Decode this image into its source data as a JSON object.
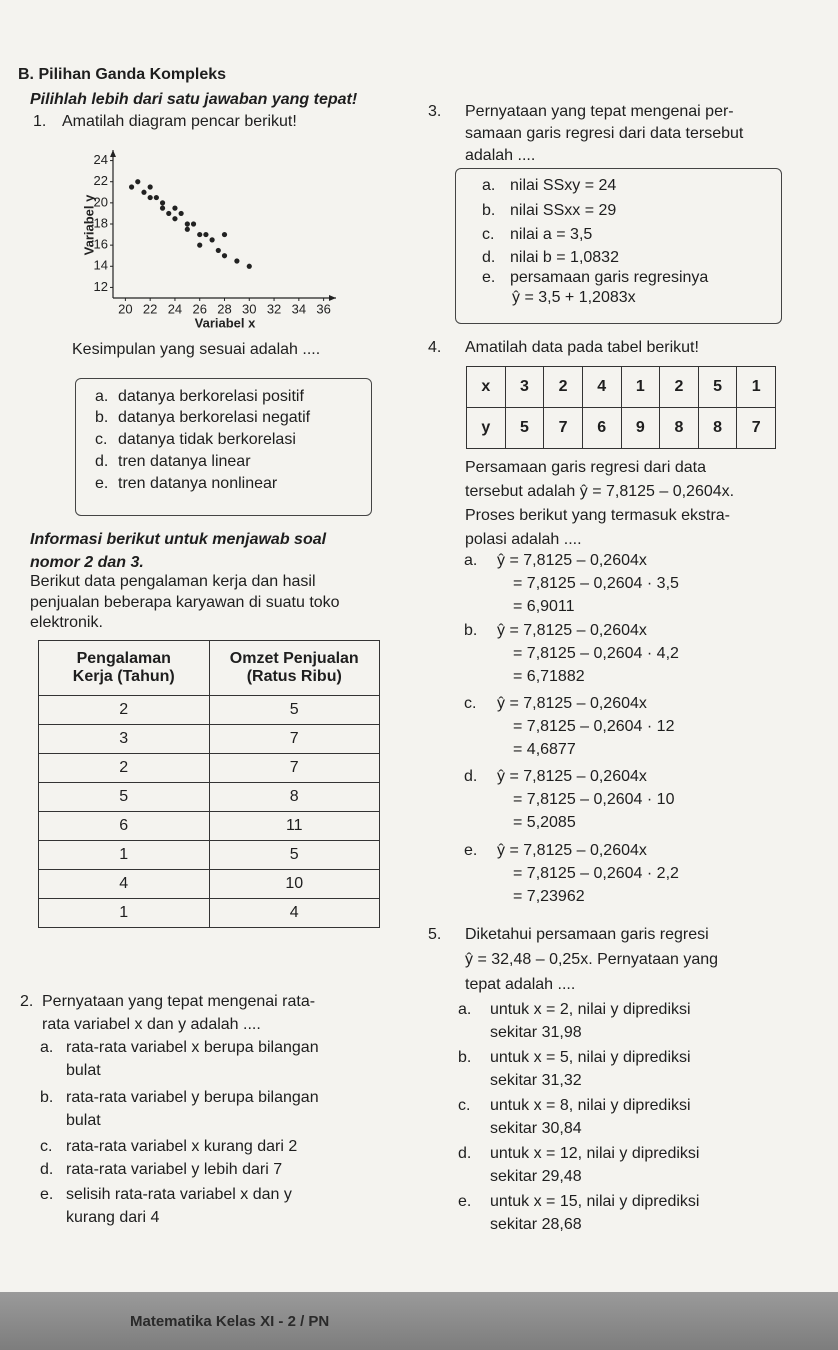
{
  "section": "B. Pilihan Ganda Kompleks",
  "instruction": "Pilihlah lebih dari satu jawaban yang tepat!",
  "q1": {
    "number": "1.",
    "prompt": "Amatilah diagram pencar berikut!",
    "chart": {
      "type": "scatter",
      "xlabel": "Variabel x",
      "ylabel": "Variabel y",
      "x": [
        20.5,
        21,
        21.5,
        22,
        22,
        22.5,
        23,
        23,
        23.5,
        24,
        24,
        24.5,
        25,
        25,
        25.5,
        26,
        26,
        26.5,
        27,
        27.5,
        28,
        28,
        29,
        30
      ],
      "y": [
        21.5,
        22,
        21,
        21.5,
        20.5,
        20.5,
        20,
        19.5,
        19,
        19.5,
        18.5,
        19,
        18,
        17.5,
        18,
        17,
        16,
        17,
        16.5,
        15.5,
        17,
        15,
        14.5,
        14
      ],
      "color": "#222222",
      "xlim": [
        19,
        37
      ],
      "ylim": [
        11,
        25
      ],
      "xticks": [
        20,
        22,
        24,
        26,
        28,
        30,
        32,
        34,
        36
      ],
      "yticks": [
        12,
        14,
        16,
        18,
        20,
        22,
        24
      ]
    },
    "question": "Kesimpulan yang sesuai adalah ....",
    "options": [
      {
        "letter": "a.",
        "lines": [
          "datanya berkorelasi positif"
        ]
      },
      {
        "letter": "b.",
        "lines": [
          "datanya berkorelasi negatif"
        ]
      },
      {
        "letter": "c.",
        "lines": [
          "datanya tidak berkorelasi"
        ]
      },
      {
        "letter": "d.",
        "lines": [
          "tren datanya linear"
        ]
      },
      {
        "letter": "e.",
        "lines": [
          "tren datanya nonlinear"
        ]
      }
    ]
  },
  "info": {
    "title": [
      "Informasi berikut untuk menjawab soal",
      "nomor 2 dan 3."
    ],
    "text": [
      "Berikut data pengalaman kerja dan hasil",
      "penjualan beberapa karyawan di suatu toko",
      "elektronik."
    ],
    "table": {
      "header": [
        "Pengalaman Kerja (Tahun)",
        "Omzet Penjualan (Ratus Ribu)"
      ],
      "rows": [
        [
          2,
          5
        ],
        [
          3,
          7
        ],
        [
          2,
          7
        ],
        [
          5,
          8
        ],
        [
          6,
          11
        ],
        [
          1,
          5
        ],
        [
          4,
          10
        ],
        [
          1,
          4
        ]
      ]
    }
  },
  "q2": {
    "number": "2.",
    "prompt": [
      "Pernyataan yang tepat mengenai rata-",
      "rata variabel x dan y adalah ...."
    ],
    "options": [
      {
        "letter": "a.",
        "lines": [
          "rata-rata variabel x berupa bilangan",
          "bulat"
        ]
      },
      {
        "letter": "b.",
        "lines": [
          "rata-rata variabel y berupa bilangan",
          "bulat"
        ]
      },
      {
        "letter": "c.",
        "lines": [
          "rata-rata variabel x kurang dari 2"
        ]
      },
      {
        "letter": "d.",
        "lines": [
          "rata-rata variabel y lebih dari 7"
        ]
      },
      {
        "letter": "e.",
        "lines": [
          "selisih rata-rata variabel x dan y",
          "kurang dari 4"
        ]
      }
    ]
  },
  "q3": {
    "number": "3.",
    "prompt": [
      "Pernyataan yang tepat mengenai per-",
      "samaan garis regresi dari data tersebut",
      "adalah ...."
    ],
    "options": [
      {
        "letter": "a.",
        "lines": [
          "nilai SSxy = 24"
        ]
      },
      {
        "letter": "b.",
        "lines": [
          "nilai SSxx = 29"
        ]
      },
      {
        "letter": "c.",
        "lines": [
          "nilai a = 3,5"
        ]
      },
      {
        "letter": "d.",
        "lines": [
          "nilai b = 1,0832"
        ]
      },
      {
        "letter": "e.",
        "lines": [
          "persamaan garis regresinya",
          "ŷ = 3,5 + 1,2083x"
        ]
      }
    ]
  },
  "q4": {
    "number": "4.",
    "prompt": "Amatilah data pada tabel berikut!",
    "table": {
      "rows": [
        {
          "label": "x",
          "values": [
            3,
            2,
            4,
            1,
            2,
            5,
            1
          ]
        },
        {
          "label": "y",
          "values": [
            5,
            7,
            6,
            9,
            8,
            8,
            7
          ]
        }
      ]
    },
    "text": [
      "Persamaan garis regresi dari data",
      "tersebut adalah ŷ = 7,8125 – 0,2604x.",
      "Proses berikut yang termasuk ekstra-",
      "polasi adalah ...."
    ],
    "options": [
      {
        "letter": "a.",
        "lines": [
          "ŷ = 7,8125 – 0,2604x",
          "= 7,8125 – 0,2604 · 3,5",
          "= 6,9011"
        ]
      },
      {
        "letter": "b.",
        "lines": [
          "ŷ = 7,8125 – 0,2604x",
          "= 7,8125 – 0,2604 · 4,2",
          "= 6,71882"
        ]
      },
      {
        "letter": "c.",
        "lines": [
          "ŷ = 7,8125 – 0,2604x",
          "= 7,8125 – 0,2604 · 12",
          "= 4,6877"
        ]
      },
      {
        "letter": "d.",
        "lines": [
          "ŷ = 7,8125 – 0,2604x",
          "= 7,8125 – 0,2604 · 10",
          "= 5,2085"
        ]
      },
      {
        "letter": "e.",
        "lines": [
          "ŷ = 7,8125 – 0,2604x",
          "= 7,8125 – 0,2604 · 2,2",
          "= 7,23962"
        ]
      }
    ]
  },
  "q5": {
    "number": "5.",
    "prompt": [
      "Diketahui persamaan garis regresi",
      "ŷ = 32,48 – 0,25x. Pernyataan yang",
      "tepat adalah ...."
    ],
    "options": [
      {
        "letter": "a.",
        "lines": [
          "untuk x = 2, nilai y diprediksi",
          "sekitar 31,98"
        ]
      },
      {
        "letter": "b.",
        "lines": [
          "untuk x = 5, nilai y diprediksi",
          "sekitar 31,32"
        ]
      },
      {
        "letter": "c.",
        "lines": [
          "untuk x = 8, nilai y diprediksi",
          "sekitar 30,84"
        ]
      },
      {
        "letter": "d.",
        "lines": [
          "untuk x = 12, nilai y diprediksi",
          "sekitar 29,48"
        ]
      },
      {
        "letter": "e.",
        "lines": [
          "untuk x = 15, nilai y diprediksi",
          "sekitar 28,68"
        ]
      }
    ]
  },
  "footer": "Matematika Kelas XI - 2 / PN"
}
